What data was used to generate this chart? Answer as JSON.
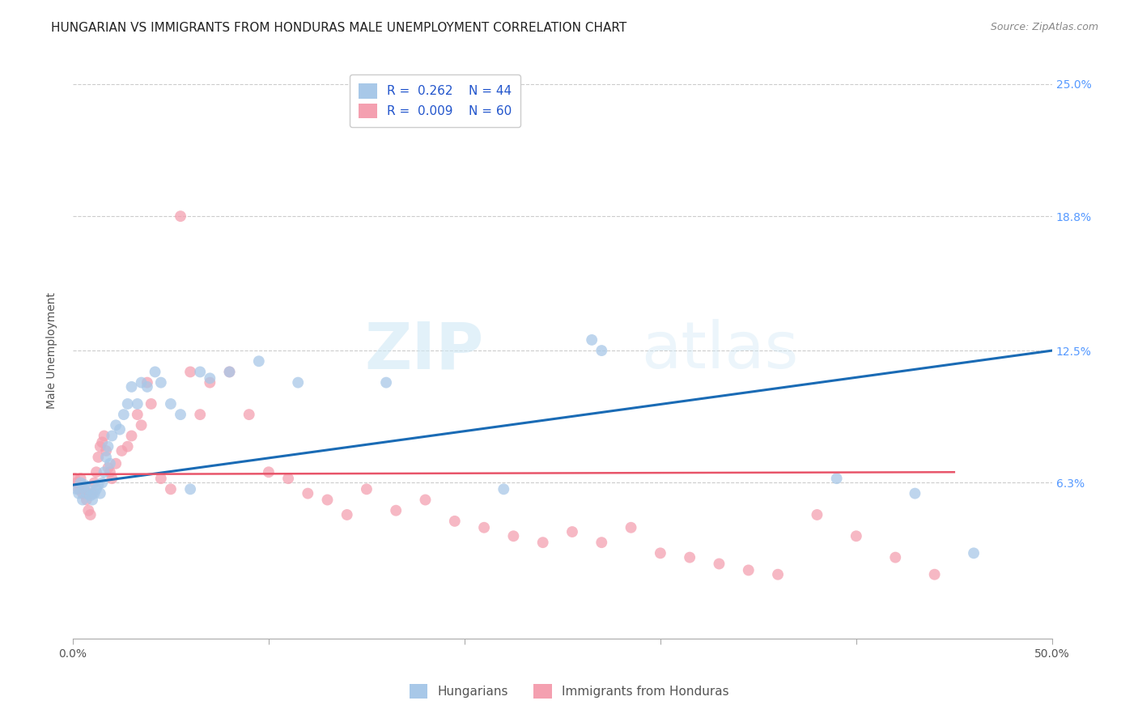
{
  "title": "HUNGARIAN VS IMMIGRANTS FROM HONDURAS MALE UNEMPLOYMENT CORRELATION CHART",
  "source": "Source: ZipAtlas.com",
  "ylabel": "Male Unemployment",
  "xlim": [
    0.0,
    0.5
  ],
  "ylim": [
    -0.01,
    0.26
  ],
  "ytick_vals": [
    0.063,
    0.125,
    0.188,
    0.25
  ],
  "ytick_labels": [
    "6.3%",
    "12.5%",
    "18.8%",
    "25.0%"
  ],
  "legend_R1": "R =  0.262",
  "legend_N1": "N = 44",
  "legend_R2": "R =  0.009",
  "legend_N2": "N = 60",
  "legend_label1": "Hungarians",
  "legend_label2": "Immigrants from Honduras",
  "color_blue": "#a8c8e8",
  "color_pink": "#f4a0b0",
  "color_blue_line": "#1a6bb5",
  "color_pink_line": "#e8556a",
  "blue_x": [
    0.002,
    0.003,
    0.004,
    0.005,
    0.006,
    0.007,
    0.008,
    0.009,
    0.01,
    0.011,
    0.012,
    0.013,
    0.014,
    0.015,
    0.016,
    0.017,
    0.018,
    0.019,
    0.02,
    0.022,
    0.024,
    0.026,
    0.028,
    0.03,
    0.033,
    0.035,
    0.038,
    0.042,
    0.045,
    0.05,
    0.055,
    0.06,
    0.065,
    0.07,
    0.08,
    0.095,
    0.115,
    0.16,
    0.22,
    0.265,
    0.27,
    0.39,
    0.43,
    0.46
  ],
  "blue_y": [
    0.06,
    0.058,
    0.063,
    0.055,
    0.062,
    0.058,
    0.06,
    0.057,
    0.055,
    0.058,
    0.06,
    0.062,
    0.058,
    0.063,
    0.068,
    0.075,
    0.08,
    0.072,
    0.085,
    0.09,
    0.088,
    0.095,
    0.1,
    0.108,
    0.1,
    0.11,
    0.108,
    0.115,
    0.11,
    0.1,
    0.095,
    0.06,
    0.115,
    0.112,
    0.115,
    0.12,
    0.11,
    0.11,
    0.06,
    0.13,
    0.125,
    0.065,
    0.058,
    0.03
  ],
  "pink_x": [
    0.001,
    0.002,
    0.003,
    0.004,
    0.005,
    0.006,
    0.007,
    0.008,
    0.009,
    0.01,
    0.011,
    0.012,
    0.013,
    0.014,
    0.015,
    0.016,
    0.017,
    0.018,
    0.019,
    0.02,
    0.022,
    0.025,
    0.028,
    0.03,
    0.033,
    0.035,
    0.038,
    0.04,
    0.045,
    0.05,
    0.055,
    0.06,
    0.065,
    0.07,
    0.08,
    0.09,
    0.1,
    0.11,
    0.12,
    0.13,
    0.14,
    0.15,
    0.165,
    0.18,
    0.195,
    0.21,
    0.225,
    0.24,
    0.255,
    0.27,
    0.285,
    0.3,
    0.315,
    0.33,
    0.345,
    0.36,
    0.38,
    0.4,
    0.42,
    0.44
  ],
  "pink_y": [
    0.065,
    0.063,
    0.06,
    0.065,
    0.058,
    0.06,
    0.055,
    0.05,
    0.048,
    0.058,
    0.063,
    0.068,
    0.075,
    0.08,
    0.082,
    0.085,
    0.078,
    0.07,
    0.068,
    0.065,
    0.072,
    0.078,
    0.08,
    0.085,
    0.095,
    0.09,
    0.11,
    0.1,
    0.065,
    0.06,
    0.188,
    0.115,
    0.095,
    0.11,
    0.115,
    0.095,
    0.068,
    0.065,
    0.058,
    0.055,
    0.048,
    0.06,
    0.05,
    0.055,
    0.045,
    0.042,
    0.038,
    0.035,
    0.04,
    0.035,
    0.042,
    0.03,
    0.028,
    0.025,
    0.022,
    0.02,
    0.048,
    0.038,
    0.028,
    0.02
  ],
  "blue_trend_x": [
    0.0,
    0.5
  ],
  "blue_trend_y": [
    0.062,
    0.125
  ],
  "pink_trend_x": [
    0.0,
    0.45
  ],
  "pink_trend_y": [
    0.067,
    0.068
  ],
  "title_fontsize": 11,
  "source_fontsize": 9,
  "axis_label_fontsize": 10,
  "tick_fontsize": 10,
  "legend_fontsize": 11,
  "marker_size": 100,
  "background_color": "#ffffff",
  "grid_color": "#cccccc",
  "ytick_color": "#5599ff"
}
